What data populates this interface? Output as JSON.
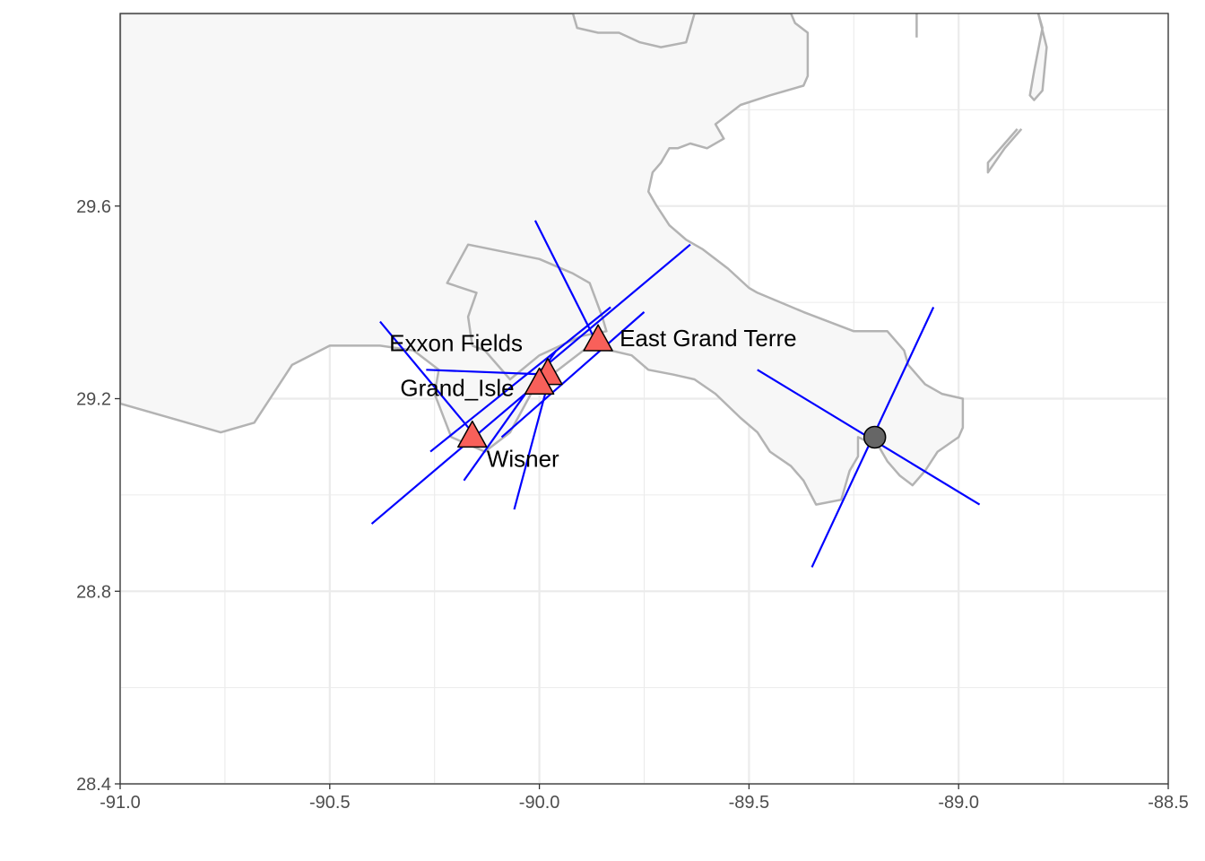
{
  "chart_data": {
    "type": "map",
    "title": "",
    "xlabel": "",
    "ylabel": "",
    "xlim": [
      -91.0,
      -88.5
    ],
    "ylim": [
      28.4,
      30.0
    ],
    "grid": true,
    "x_ticks": [
      -91.0,
      -90.5,
      -90.0,
      -89.5,
      -89.0,
      -88.5
    ],
    "x_tick_labels": [
      "-91.0",
      "-90.5",
      "-90.0",
      "-89.5",
      "-89.0",
      "-88.5"
    ],
    "y_ticks": [
      28.4,
      28.8,
      29.2,
      29.6
    ],
    "y_tick_labels": [
      "28.4",
      "28.8",
      "29.2",
      "29.6"
    ],
    "colors": {
      "land_fill": "#f7f7f7",
      "land_outline": "#b3b3b3",
      "bearing_line": "#0000ff",
      "station_fill": "#f8605a",
      "target_fill": "#666666",
      "grid": "#ebebeb",
      "panel_border": "#333333"
    },
    "coastline": [
      [
        [
          -91.0,
          29.19
        ],
        [
          -90.76,
          29.13
        ],
        [
          -90.68,
          29.15
        ],
        [
          -90.59,
          29.27
        ],
        [
          -90.5,
          29.31
        ],
        [
          -90.38,
          29.31
        ],
        [
          -90.3,
          29.3
        ],
        [
          -90.24,
          29.26
        ],
        [
          -90.25,
          29.21
        ],
        [
          -90.21,
          29.12
        ],
        [
          -90.13,
          29.09
        ],
        [
          -90.07,
          29.13
        ],
        [
          -90.02,
          29.21
        ],
        [
          -89.97,
          29.25
        ],
        [
          -89.88,
          29.31
        ],
        [
          -89.78,
          29.29
        ],
        [
          -89.74,
          29.26
        ],
        [
          -89.68,
          29.25
        ],
        [
          -89.63,
          29.24
        ],
        [
          -89.58,
          29.21
        ],
        [
          -89.52,
          29.16
        ],
        [
          -89.48,
          29.13
        ],
        [
          -89.45,
          29.09
        ],
        [
          -89.4,
          29.06
        ],
        [
          -89.37,
          29.03
        ],
        [
          -89.34,
          28.98
        ],
        [
          -89.28,
          28.99
        ],
        [
          -89.26,
          29.05
        ],
        [
          -89.24,
          29.08
        ],
        [
          -89.24,
          29.12
        ],
        [
          -89.19,
          29.1
        ],
        [
          -89.17,
          29.07
        ],
        [
          -89.14,
          29.04
        ],
        [
          -89.11,
          29.02
        ],
        [
          -89.08,
          29.05
        ],
        [
          -89.05,
          29.09
        ],
        [
          -89.0,
          29.12
        ],
        [
          -88.99,
          29.14
        ],
        [
          -88.99,
          29.2
        ],
        [
          -89.04,
          29.21
        ],
        [
          -89.08,
          29.23
        ],
        [
          -89.12,
          29.27
        ],
        [
          -89.13,
          29.3
        ],
        [
          -89.17,
          29.34
        ],
        [
          -89.25,
          29.34
        ],
        [
          -89.37,
          29.38
        ],
        [
          -89.48,
          29.42
        ],
        [
          -89.5,
          29.43
        ],
        [
          -89.55,
          29.47
        ],
        [
          -89.61,
          29.51
        ],
        [
          -89.65,
          29.53
        ],
        [
          -89.69,
          29.56
        ],
        [
          -89.72,
          29.6
        ],
        [
          -89.74,
          29.63
        ],
        [
          -89.73,
          29.67
        ],
        [
          -89.71,
          29.69
        ],
        [
          -89.69,
          29.72
        ],
        [
          -89.67,
          29.72
        ],
        [
          -89.64,
          29.73
        ],
        [
          -89.6,
          29.72
        ],
        [
          -89.56,
          29.74
        ],
        [
          -89.58,
          29.77
        ],
        [
          -89.52,
          29.81
        ],
        [
          -89.45,
          29.83
        ],
        [
          -89.37,
          29.85
        ],
        [
          -89.36,
          29.87
        ],
        [
          -89.36,
          29.91
        ],
        [
          -89.36,
          29.96
        ],
        [
          -89.39,
          29.98
        ],
        [
          -89.4,
          30.0
        ],
        [
          -91.0,
          30.0
        ],
        [
          -91.0,
          29.19
        ]
      ],
      [
        [
          -90.16,
          29.31
        ],
        [
          -90.17,
          29.37
        ],
        [
          -90.15,
          29.42
        ],
        [
          -90.22,
          29.44
        ],
        [
          -90.17,
          29.52
        ],
        [
          -90.0,
          29.49
        ],
        [
          -89.92,
          29.46
        ],
        [
          -89.88,
          29.44
        ],
        [
          -89.85,
          29.37
        ],
        [
          -89.84,
          29.34
        ],
        [
          -89.9,
          29.33
        ],
        [
          -90.0,
          29.29
        ],
        [
          -90.07,
          29.24
        ],
        [
          -90.13,
          29.3
        ],
        [
          -90.16,
          29.31
        ]
      ],
      [
        [
          -89.63,
          30.0
        ],
        [
          -89.65,
          29.94
        ],
        [
          -89.71,
          29.93
        ],
        [
          -89.76,
          29.94
        ],
        [
          -89.81,
          29.96
        ],
        [
          -89.86,
          29.96
        ],
        [
          -89.91,
          29.97
        ],
        [
          -89.92,
          30.0
        ]
      ],
      [
        [
          -89.1,
          30.0
        ],
        [
          -89.1,
          29.95
        ]
      ],
      [
        [
          -88.81,
          30.0
        ],
        [
          -88.79,
          29.93
        ],
        [
          -88.8,
          29.84
        ],
        [
          -88.82,
          29.82
        ],
        [
          -88.83,
          29.83
        ],
        [
          -88.82,
          29.88
        ],
        [
          -88.8,
          29.97
        ],
        [
          -88.81,
          30.0
        ]
      ],
      [
        [
          -88.85,
          29.76
        ],
        [
          -88.89,
          29.72
        ],
        [
          -88.93,
          29.67
        ],
        [
          -88.93,
          29.69
        ],
        [
          -88.89,
          29.73
        ],
        [
          -88.86,
          29.76
        ]
      ]
    ],
    "bearing_lines": [
      [
        [
          -90.38,
          29.36
        ],
        [
          -90.16,
          29.13
        ]
      ],
      [
        [
          -90.27,
          29.26
        ],
        [
          -89.98,
          29.25
        ]
      ],
      [
        [
          -90.4,
          28.94
        ],
        [
          -89.98,
          29.25
        ]
      ],
      [
        [
          -90.26,
          29.09
        ],
        [
          -89.83,
          29.39
        ]
      ],
      [
        [
          -90.18,
          29.03
        ],
        [
          -89.96,
          29.3
        ]
      ],
      [
        [
          -90.06,
          28.97
        ],
        [
          -89.98,
          29.23
        ]
      ],
      [
        [
          -90.01,
          29.57
        ],
        [
          -89.86,
          29.31
        ]
      ],
      [
        [
          -90.09,
          29.12
        ],
        [
          -89.75,
          29.38
        ]
      ],
      [
        [
          -90.01,
          29.25
        ],
        [
          -89.64,
          29.52
        ]
      ],
      [
        [
          -89.48,
          29.26
        ],
        [
          -88.95,
          28.98
        ]
      ],
      [
        [
          -89.35,
          28.85
        ],
        [
          -89.06,
          29.39
        ]
      ]
    ],
    "stations": [
      {
        "name": "Exxon Fields",
        "lon": -89.98,
        "lat": 29.25,
        "label_anchor": "above-left"
      },
      {
        "name": "Grand_Isle",
        "lon": -90.0,
        "lat": 29.23,
        "label_anchor": "left"
      },
      {
        "name": "East Grand Terre",
        "lon": -89.86,
        "lat": 29.32,
        "label_anchor": "right"
      },
      {
        "name": "Wisner",
        "lon": -90.16,
        "lat": 29.12,
        "label_anchor": "below-right"
      }
    ],
    "target": {
      "lon": -89.2,
      "lat": 29.12
    }
  }
}
